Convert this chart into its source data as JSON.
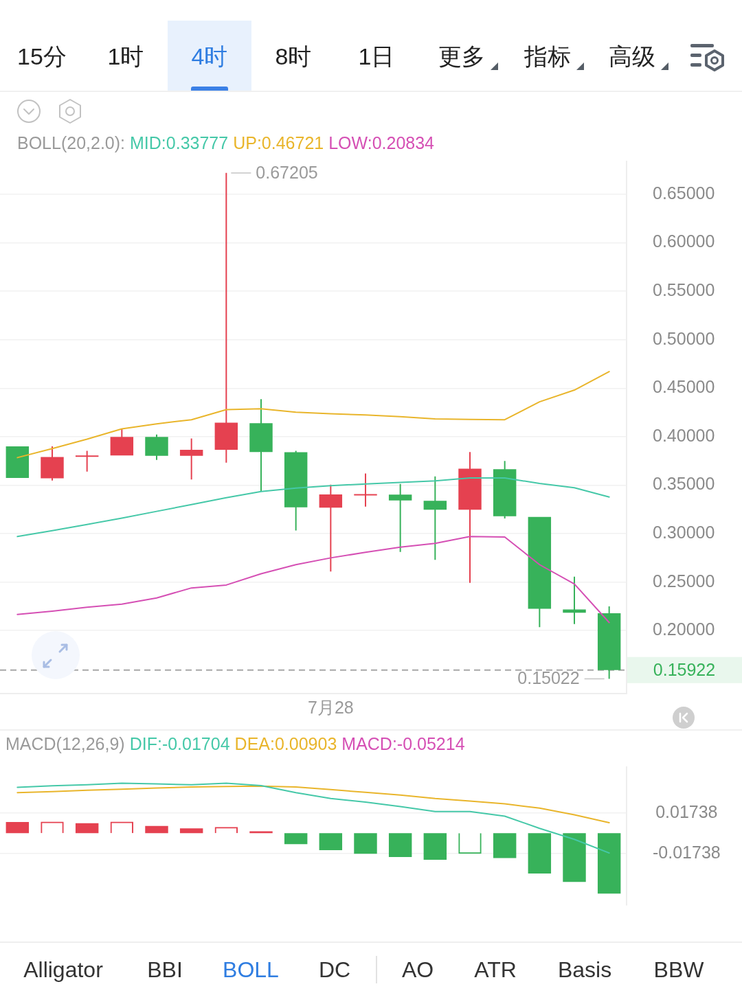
{
  "chart_data": [
    {
      "type": "candlestick",
      "title": "BOLL(20,2.0):",
      "categories": [
        null,
        null,
        null,
        null,
        null,
        null,
        null,
        null,
        null,
        "7月28",
        null,
        null,
        null,
        null,
        null,
        null,
        null,
        null
      ],
      "ohlc": [
        [
          0.39,
          0.39,
          0.3574,
          0.3574
        ],
        [
          0.357,
          0.39,
          0.3547,
          0.3791
        ],
        [
          0.3805,
          0.3854,
          0.364,
          0.3807
        ],
        [
          0.3807,
          0.4081,
          0.3807,
          0.3997
        ],
        [
          0.3997,
          0.4023,
          0.376,
          0.3802
        ],
        [
          0.3802,
          0.3981,
          0.3558,
          0.3865
        ],
        [
          0.3865,
          0.67205,
          0.3732,
          0.4144
        ],
        [
          0.414,
          0.4388,
          0.3435,
          0.3842
        ],
        [
          0.384,
          0.3854,
          0.3033,
          0.3272
        ],
        [
          0.3268,
          0.3505,
          0.2609,
          0.3404
        ],
        [
          0.3404,
          0.362,
          0.3279,
          0.3407
        ],
        [
          0.3402,
          0.3512,
          0.2811,
          0.3342
        ],
        [
          0.3339,
          0.3591,
          0.273,
          0.3246
        ],
        [
          0.3246,
          0.3842,
          0.2493,
          0.367
        ],
        [
          0.3665,
          0.3749,
          0.3156,
          0.3179
        ],
        [
          0.3172,
          0.3172,
          0.2035,
          0.2225
        ],
        [
          0.2218,
          0.2556,
          0.2068,
          0.2184
        ],
        [
          0.2179,
          0.2249,
          0.15022,
          0.15922
        ]
      ],
      "colors": [
        "#37b25a",
        "#e54150",
        "#e54150",
        "#e54150",
        "#37b25a",
        "#e54150",
        "#e54150",
        "#37b25a",
        "#37b25a",
        "#e54150",
        "#e54150",
        "#37b25a",
        "#37b25a",
        "#e54150",
        "#37b25a",
        "#37b25a",
        "#37b25a",
        "#37b25a"
      ],
      "series": [
        {
          "type": "line",
          "name": "MID:0.33777",
          "color": "#45c8a8",
          "values": [
            0.297,
            0.303,
            0.3095,
            0.316,
            0.323,
            0.33,
            0.337,
            0.3435,
            0.347,
            0.3495,
            0.3512,
            0.3528,
            0.3545,
            0.3575,
            0.3575,
            0.3517,
            0.3474,
            0.33777
          ]
        },
        {
          "type": "line",
          "name": "UP:0.46721",
          "color": "#e9b52b",
          "values": [
            0.3784,
            0.3877,
            0.3974,
            0.4081,
            0.4133,
            0.4175,
            0.4279,
            0.4288,
            0.4253,
            0.4236,
            0.4225,
            0.4207,
            0.4184,
            0.4179,
            0.4175,
            0.436,
            0.4481,
            0.46721
          ]
        },
        {
          "type": "line",
          "name": "LOW:0.20834",
          "color": "#d54fb4",
          "values": [
            0.2167,
            0.22,
            0.224,
            0.2272,
            0.2337,
            0.244,
            0.247,
            0.2586,
            0.268,
            0.275,
            0.2807,
            0.286,
            0.29,
            0.297,
            0.2965,
            0.268,
            0.2481,
            0.20834
          ]
        }
      ],
      "ylim": [
        0.135,
        0.684
      ],
      "yticks": [
        {
          "value": 0.65,
          "label": "0.65000"
        },
        {
          "value": 0.6,
          "label": "0.60000"
        },
        {
          "value": 0.55,
          "label": "0.55000"
        },
        {
          "value": 0.5,
          "label": "0.50000"
        },
        {
          "value": 0.45,
          "label": "0.45000"
        },
        {
          "value": 0.4,
          "label": "0.40000"
        },
        {
          "value": 0.35,
          "label": "0.35000"
        },
        {
          "value": 0.3,
          "label": "0.30000"
        },
        {
          "value": 0.25,
          "label": "0.25000"
        },
        {
          "value": 0.2,
          "label": "0.20000"
        }
      ],
      "grid": "y",
      "legend": "top",
      "marker": "none",
      "ref_lines": [
        {
          "axis": "y",
          "value": 0.15922,
          "label": "0.15922",
          "line_style": "dashed",
          "color": "#a6a6a6"
        }
      ],
      "annotations": [
        "15分",
        "1时",
        "4时",
        "8时",
        "1日",
        "更多",
        "指标",
        "高级",
        "0.67205",
        "0.15022"
      ]
    },
    {
      "type": "bar",
      "title": "MACD(12,26,9)",
      "categories": [
        null,
        null,
        null,
        null,
        null,
        null,
        null,
        null,
        null,
        null,
        null,
        null,
        null,
        null,
        null,
        null,
        null,
        null
      ],
      "series": [
        {
          "type": "line",
          "name": "DIF:-0.01704",
          "color": "#45c8a8",
          "values": [
            0.0396,
            0.0409,
            0.0418,
            0.0431,
            0.0425,
            0.0417,
            0.0431,
            0.041,
            0.035,
            0.0299,
            0.0268,
            0.0229,
            0.0186,
            0.0186,
            0.0147,
            0.0042,
            -0.0053,
            -0.01704
          ]
        },
        {
          "type": "line",
          "name": "DEA:0.00903",
          "color": "#e9b52b",
          "values": [
            0.035,
            0.0359,
            0.037,
            0.0379,
            0.0389,
            0.0398,
            0.0403,
            0.0405,
            0.0398,
            0.0376,
            0.0352,
            0.0329,
            0.0299,
            0.0277,
            0.0253,
            0.0216,
            0.0158,
            0.00903
          ]
        },
        {
          "colors": [
            "#e54150",
            "#e54150",
            "#e54150",
            "#e54150",
            "#e54150",
            "#e54150",
            "#e54150",
            "#e54150",
            "#37b25a",
            "#37b25a",
            "#37b25a",
            "#37b25a",
            "#37b25a",
            "#37b25a",
            "#37b25a",
            "#37b25a",
            "#37b25a",
            "#37b25a"
          ],
          "values": [
            0.0096,
            0.0099,
            0.0086,
            0.0099,
            0.0062,
            0.0041,
            0.0053,
            0.0017,
            -0.0095,
            -0.0147,
            -0.0177,
            -0.0205,
            -0.0229,
            -0.0177,
            -0.0214,
            -0.0347,
            -0.042,
            -0.05214
          ]
        }
      ],
      "ylim": [
        -0.062,
        0.057
      ],
      "yticks": [
        0.01738,
        -0.01738
      ],
      "grid": "y",
      "legend": "top",
      "marker": "none",
      "tick_labels": "y",
      "annotations": [
        "Alligator",
        "BBI",
        "BOLL",
        "DC",
        "AO",
        "ATR",
        "Basis",
        "BBW",
        "MACD:-0.05214"
      ]
    }
  ]
}
